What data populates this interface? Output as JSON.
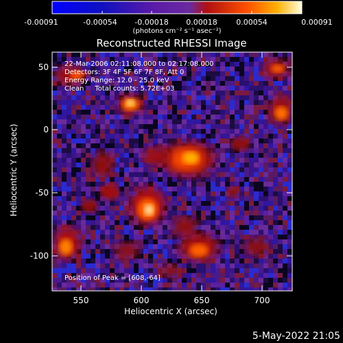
{
  "colorbar": {
    "tick_labels": [
      "-0.00091",
      "-0.00054",
      "-0.00018",
      "0.00018",
      "0.00054",
      "0.00091"
    ],
    "unit_label": "(photons cm⁻² s⁻¹ asec⁻²)"
  },
  "plot": {
    "title": "Reconstructed RHESSI Image",
    "info_lines": [
      "22-Mar-2006 02:11:08.000 to 02:17:08.000",
      "Detectors: 3F 4F 5F 6F 7F 8F, Att 0",
      "Energy Range: 12.0 - 25.0 keV",
      "Clean     Total counts: 5.72E+03"
    ],
    "peak_label": "Position of Peak = [608,-64]",
    "xlabel": "Heliocentric X (arcsec)",
    "ylabel": "Heliocentric Y (arcsec)",
    "x_ticks": [
      "550",
      "600",
      "650",
      "700"
    ],
    "y_ticks": [
      "50",
      "0",
      "-50",
      "-100"
    ]
  },
  "footer": {
    "date_stamp": "5-May-2022 21:05"
  },
  "colors": {
    "background": "#000000",
    "foreground": "#ffffff"
  }
}
